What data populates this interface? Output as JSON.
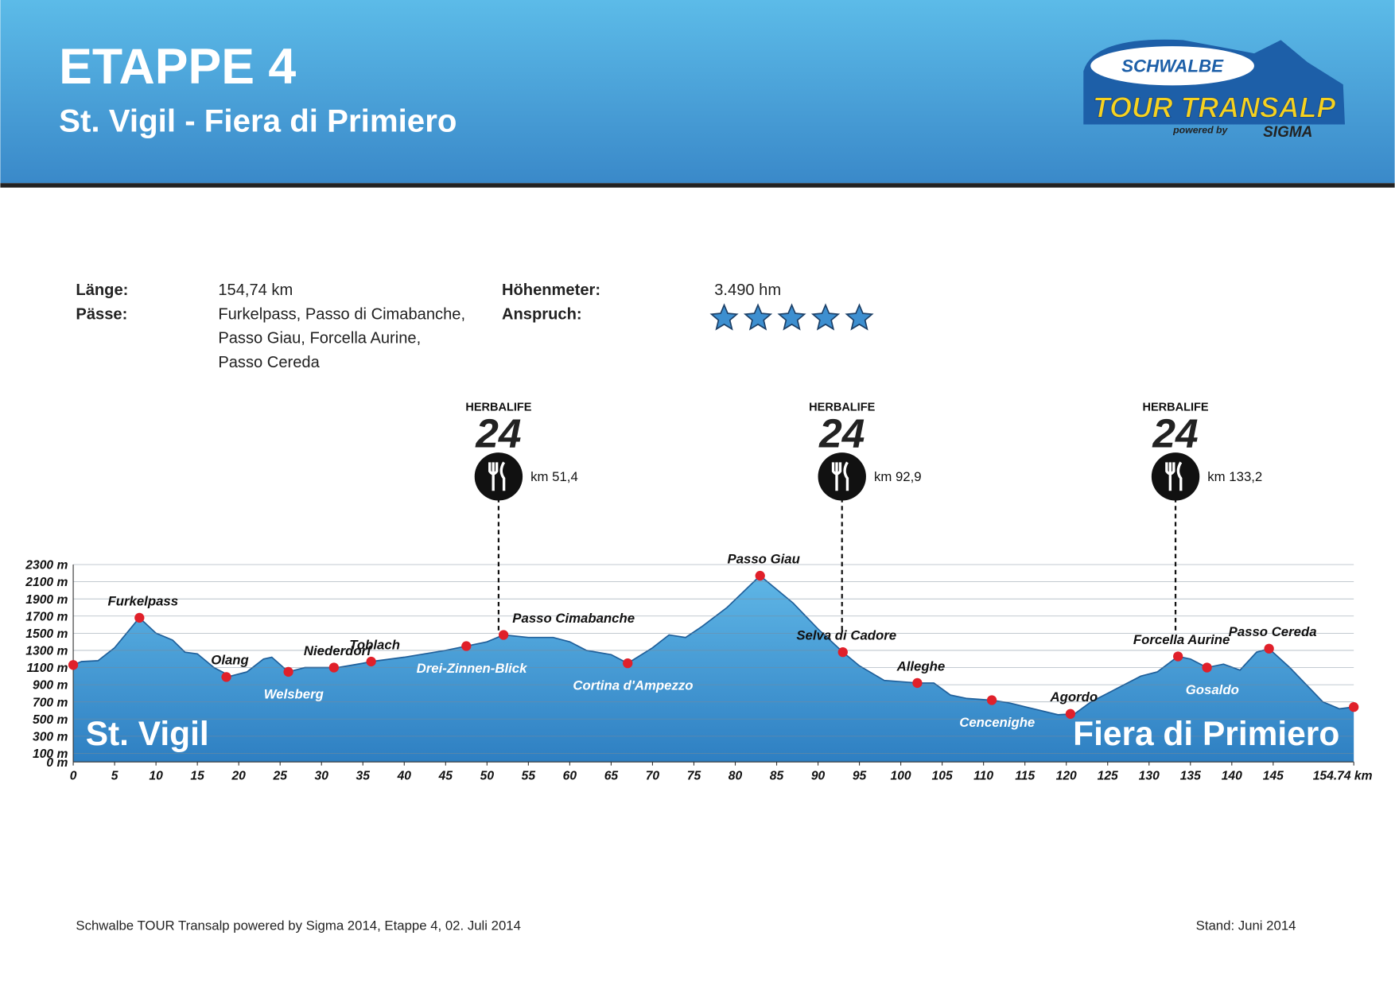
{
  "header": {
    "title": "ETAPPE 4",
    "subtitle": "St. Vigil - Fiera di Primiero",
    "logo": {
      "brand": "SCHWALBE",
      "event": "TOUR TRANSALP",
      "powered": "powered by",
      "sponsor": "SIGMA"
    }
  },
  "info": {
    "length_label": "Länge:",
    "length": "154,74 km",
    "passes_label": "Pässe:",
    "passes": [
      "Furkelpass, Passo di Cimabanche,",
      "Passo Giau, Forcella Aurine,",
      "Passo Cereda"
    ],
    "climb_label": "Höhenmeter:",
    "climb": "3.490 hm",
    "difficulty_label": "Anspruch:",
    "difficulty": 5
  },
  "chart_data": {
    "type": "area",
    "color": "#3d93d3",
    "x": [
      0,
      1,
      3,
      5,
      8,
      10,
      12,
      13.5,
      15,
      17,
      19,
      21,
      23,
      24,
      26,
      28,
      31,
      32,
      35,
      36,
      40,
      45,
      47.5,
      50,
      52,
      55,
      58,
      60,
      62,
      65,
      67,
      70,
      72,
      74,
      76,
      79,
      83,
      87,
      90,
      93,
      95,
      98,
      102,
      104,
      106,
      108,
      111,
      113,
      116,
      119,
      121,
      123,
      126,
      129,
      131,
      133.5,
      135,
      137,
      139,
      141,
      143,
      144.5,
      147,
      149,
      151,
      153,
      154.74
    ],
    "values": [
      1130,
      1170,
      1180,
      1330,
      1680,
      1500,
      1420,
      1280,
      1260,
      1100,
      1000,
      1050,
      1200,
      1220,
      1050,
      1100,
      1100,
      1100,
      1150,
      1170,
      1220,
      1300,
      1350,
      1400,
      1480,
      1450,
      1450,
      1400,
      1300,
      1250,
      1150,
      1330,
      1480,
      1450,
      1580,
      1800,
      2170,
      1850,
      1550,
      1280,
      1120,
      950,
      920,
      920,
      780,
      740,
      720,
      690,
      620,
      550,
      560,
      700,
      850,
      1000,
      1050,
      1230,
      1200,
      1100,
      1140,
      1070,
      1280,
      1320,
      1100,
      900,
      700,
      620,
      640
    ],
    "xlim": [
      0,
      154.74
    ],
    "ylim": [
      0,
      2300
    ],
    "xticks": [
      0,
      5,
      10,
      15,
      20,
      25,
      30,
      35,
      40,
      45,
      50,
      55,
      60,
      65,
      70,
      75,
      80,
      85,
      90,
      95,
      100,
      105,
      110,
      115,
      120,
      125,
      130,
      135,
      140,
      145,
      {
        "value": 154.74,
        "label": "154.74 km"
      }
    ],
    "yticks": [
      {
        "value": 0,
        "label": "0 m"
      },
      {
        "value": 100,
        "label": "100 m"
      },
      {
        "value": 300,
        "label": "300 m"
      },
      {
        "value": 500,
        "label": "500 m"
      },
      {
        "value": 700,
        "label": "700 m"
      },
      {
        "value": 900,
        "label": "900 m"
      },
      {
        "value": 1100,
        "label": "1100 m"
      },
      {
        "value": 1300,
        "label": "1300 m"
      },
      {
        "value": 1500,
        "label": "1500 m"
      },
      {
        "value": 1700,
        "label": "1700 m"
      },
      {
        "value": 1900,
        "label": "1900 m"
      },
      {
        "value": 2100,
        "label": "2100 m"
      },
      {
        "value": 2300,
        "label": "2300 m"
      }
    ],
    "grid": true,
    "waypoints": {
      "names": [
        "St. Vigil",
        "Furkelpass",
        "Olang",
        "Welsberg",
        "Niederdorf",
        "Toblach",
        "Drei-Zinnen-Blick",
        "Passo Cimabanche",
        "Cortina d'Ampezzo",
        "Passo Giau",
        "Selva di Cadore",
        "Alleghe",
        "Cencenighe",
        "Agordo",
        "Forcella Aurine",
        "Gosaldo",
        "Passo Cereda",
        "Fiera di Primiero"
      ],
      "x": [
        0,
        8,
        18.5,
        26,
        31.5,
        36,
        47.5,
        52,
        67,
        83,
        93,
        102,
        111,
        120.5,
        133.5,
        137,
        144.5,
        154.74
      ],
      "values": [
        1130,
        1680,
        990,
        1050,
        1100,
        1170,
        1350,
        1480,
        1150,
        2170,
        1280,
        920,
        720,
        560,
        1230,
        1100,
        1320,
        640
      ],
      "color": "#e0202a"
    },
    "feed_stations": {
      "x": [
        51.4,
        92.9,
        133.2
      ],
      "labels": [
        "km 51,4",
        "km 92,9",
        "km 133,2"
      ],
      "brand": "HERBALIFE",
      "brand_number": "24"
    }
  },
  "footer": {
    "left": "Schwalbe TOUR Transalp powered by Sigma 2014, Etappe 4, 02. Juli 2014",
    "right": "Stand: Juni 2014"
  }
}
